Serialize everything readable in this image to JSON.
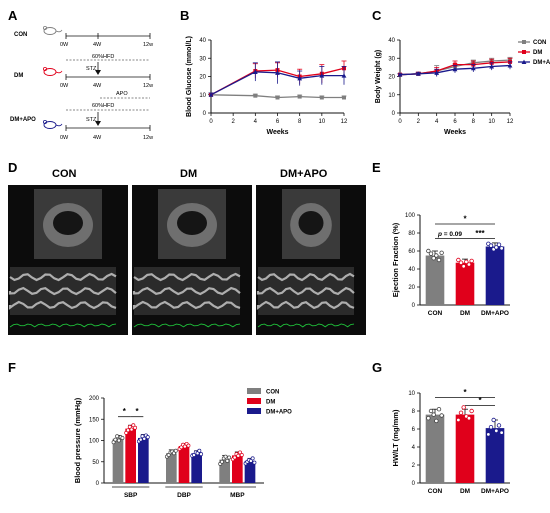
{
  "colors": {
    "con": "#7f7f7f",
    "dm": "#e0001b",
    "dmapo": "#1a1a8c",
    "axis": "#111111"
  },
  "panel_a": {
    "letter": "A",
    "groups": [
      {
        "name": "CON",
        "icon": "mouse-icon-gray"
      },
      {
        "name": "DM",
        "icon": "mouse-icon-red"
      },
      {
        "name": "DM+APO",
        "icon": "mouse-icon-blue"
      }
    ],
    "ticks": [
      "0W",
      "4W",
      "12w"
    ],
    "hfd_label": "60%HFD",
    "stz_label": "STZ",
    "apo_label": "APO"
  },
  "panel_d": {
    "letter": "D",
    "groups": [
      "CON",
      "DM",
      "DM+APO"
    ],
    "image_icon": "echocardiography-image"
  },
  "chart_data": [
    {
      "id": "B",
      "type": "line",
      "ylabel": "Blood Glucose (mmol/L)",
      "xlabel": "Weeks",
      "x": [
        0,
        2,
        4,
        6,
        8,
        10,
        12
      ],
      "xticks": [
        0,
        2,
        4,
        6,
        8,
        10,
        12
      ],
      "ylim": [
        0,
        40
      ],
      "yticks": [
        0,
        10,
        20,
        30,
        40
      ],
      "series": [
        {
          "key": "con",
          "x": [
            0,
            4,
            6,
            8,
            10,
            12
          ],
          "values": [
            10,
            9.5,
            8.5,
            9,
            8.5,
            8.5
          ],
          "err": [
            0.8,
            0.8,
            0.8,
            0.8,
            0.8,
            0.8
          ],
          "marker": "square"
        },
        {
          "key": "dm",
          "x": [
            0,
            4,
            6,
            8,
            10,
            12
          ],
          "values": [
            10,
            23,
            23.5,
            20,
            21.5,
            24.5
          ],
          "err": [
            1,
            4,
            4,
            4,
            5,
            4
          ],
          "marker": "square"
        },
        {
          "key": "dmapo",
          "x": [
            0,
            4,
            6,
            8,
            10,
            12
          ],
          "values": [
            10,
            22.5,
            22,
            19,
            20.5,
            20.5
          ],
          "err": [
            1,
            5,
            6,
            4,
            5,
            5
          ],
          "marker": "triangle"
        }
      ]
    },
    {
      "id": "C",
      "type": "line",
      "ylabel": "Body Weight (g)",
      "xlabel": "Weeks",
      "x": [
        0,
        2,
        4,
        6,
        8,
        10,
        12
      ],
      "xticks": [
        0,
        2,
        4,
        6,
        8,
        10,
        12
      ],
      "ylim": [
        0,
        40
      ],
      "yticks": [
        0,
        10,
        20,
        30,
        40
      ],
      "legend": [
        "CON",
        "DM",
        "DM+APO"
      ],
      "series": [
        {
          "key": "con",
          "name": "CON",
          "x": [
            0,
            2,
            4,
            6,
            8,
            10,
            12
          ],
          "values": [
            21,
            21.5,
            23,
            25.5,
            27.5,
            28.5,
            29
          ],
          "err": [
            0.5,
            0.8,
            3,
            1.5,
            1.5,
            1.5,
            1.5
          ],
          "marker": "square"
        },
        {
          "key": "dm",
          "name": "DM",
          "x": [
            0,
            2,
            4,
            6,
            8,
            10,
            12
          ],
          "values": [
            21,
            21.5,
            23,
            26.5,
            26.5,
            27.5,
            28
          ],
          "err": [
            0.5,
            0.8,
            2,
            2,
            2,
            2,
            2
          ],
          "marker": "square"
        },
        {
          "key": "dmapo",
          "name": "DM+APO",
          "x": [
            0,
            2,
            4,
            6,
            8,
            10,
            12
          ],
          "values": [
            21,
            21.5,
            22,
            24,
            24.5,
            25.5,
            26
          ],
          "err": [
            0.5,
            0.8,
            2,
            2,
            2,
            2,
            2
          ],
          "marker": "triangle"
        }
      ]
    },
    {
      "id": "E",
      "type": "bar",
      "ylabel": "Ejection Fraction (%)",
      "categories": [
        "CON",
        "DM",
        "DM+APO"
      ],
      "values": [
        55,
        47,
        65
      ],
      "err": [
        5,
        4,
        4
      ],
      "ylim": [
        0,
        100
      ],
      "yticks": [
        0,
        20,
        40,
        60,
        80,
        100
      ],
      "points": [
        [
          60,
          57,
          52,
          55,
          50,
          58
        ],
        [
          50,
          47,
          43,
          48,
          45,
          49
        ],
        [
          68,
          66,
          62,
          64,
          67,
          63
        ]
      ],
      "annotations": [
        {
          "from": 0,
          "to": 2,
          "text": "*",
          "y": 90
        },
        {
          "from": 0,
          "to": 1,
          "text": "p = 0.09",
          "y": 74
        },
        {
          "from": 1,
          "to": 2,
          "text": "***",
          "y": 74
        }
      ]
    },
    {
      "id": "F",
      "type": "bar",
      "ylabel": "Blood pressure (mmHg)",
      "categories": [
        "SBP",
        "DBP",
        "MBP"
      ],
      "legend": [
        "CON",
        "DM",
        "DM+APO"
      ],
      "ylim": [
        0,
        200
      ],
      "yticks": [
        0,
        50,
        100,
        150,
        200
      ],
      "series": [
        {
          "key": "con",
          "name": "CON",
          "values": [
            104,
            70,
            55
          ],
          "err": [
            8,
            8,
            10
          ],
          "points": [
            [
              96,
              102,
              110,
              100,
              108,
              106
            ],
            [
              62,
              66,
              72,
              74,
              70,
              76
            ],
            [
              45,
              50,
              58,
              62,
              52,
              60
            ]
          ]
        },
        {
          "key": "dm",
          "name": "DM",
          "values": [
            128,
            87,
            65
          ],
          "err": [
            8,
            6,
            8
          ],
          "points": [
            [
              118,
              124,
              132,
              126,
              136,
              130
            ],
            [
              80,
              84,
              90,
              86,
              92,
              88
            ],
            [
              56,
              60,
              68,
              64,
              72,
              66
            ]
          ]
        },
        {
          "key": "dmapo",
          "name": "DM+APO",
          "values": [
            106,
            70,
            52
          ],
          "err": [
            8,
            6,
            6
          ],
          "points": [
            [
              98,
              102,
              110,
              104,
              112,
              108
            ],
            [
              64,
              66,
              72,
              70,
              76,
              68
            ],
            [
              46,
              50,
              54,
              52,
              58,
              48
            ]
          ]
        }
      ],
      "annotations": [
        {
          "cat": 0,
          "from": 0,
          "to": 1,
          "text": "*",
          "y": 156
        },
        {
          "cat": 0,
          "from": 1,
          "to": 2,
          "text": "*",
          "y": 156
        }
      ]
    },
    {
      "id": "G",
      "type": "bar",
      "ylabel": "HW/LT (mg/mm)",
      "categories": [
        "CON",
        "DM",
        "DM+APO"
      ],
      "values": [
        7.6,
        7.6,
        6.1
      ],
      "err": [
        0.6,
        0.6,
        0.9
      ],
      "ylim": [
        0,
        10
      ],
      "yticks": [
        0,
        2,
        4,
        6,
        8,
        10
      ],
      "points": [
        [
          7.2,
          8.0,
          7.6,
          6.9,
          8.2,
          7.5
        ],
        [
          7.0,
          7.8,
          8.4,
          7.4,
          7.2,
          8.0
        ],
        [
          5.4,
          6.2,
          7.0,
          5.8,
          6.4,
          5.6
        ]
      ],
      "annotations": [
        {
          "from": 0,
          "to": 2,
          "text": "*",
          "y": 9.5
        },
        {
          "from": 1,
          "to": 2,
          "text": "*",
          "y": 8.6
        }
      ]
    }
  ]
}
